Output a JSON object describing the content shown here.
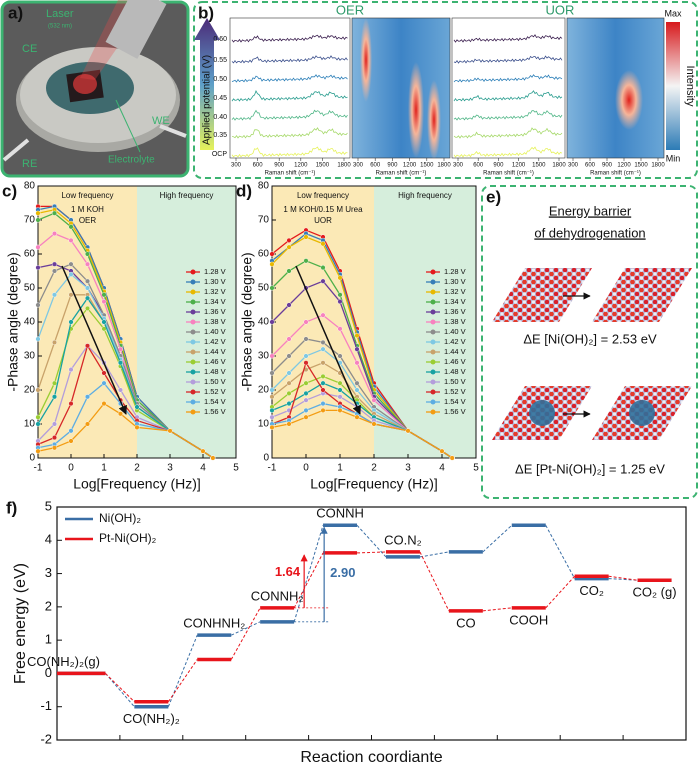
{
  "panels": {
    "a": {
      "label": "a)",
      "laser": "Laser",
      "laser_wavelength": "(532 nm)",
      "ce": "CE",
      "we": "WE",
      "re": "RE",
      "electrolyte": "Electrolyte"
    },
    "b": {
      "label": "b)",
      "oer": "OER",
      "uor": "UOR",
      "potential_axis": "Applied potential (V)",
      "potential_labels": [
        "0.60",
        "0.55",
        "0.50",
        "0.45",
        "0.40",
        "0.35",
        "OCP"
      ],
      "raman_ticks": [
        300,
        600,
        900,
        1200,
        1500,
        1800
      ],
      "raman_axis": "Raman shift (cm⁻¹)",
      "colorbar_max": "Max",
      "colorbar_label": "Intensity",
      "colorbar_min": "Min"
    },
    "e": {
      "label": "e)",
      "title_line1": "Energy barrier",
      "title_line2": "of dehydrogenation",
      "ni_barrier": "ΔE [Ni(OH)₂] = 2.53 eV",
      "pt_barrier": "ΔE [Pt-Ni(OH)₂] = 1.25 eV"
    }
  },
  "chart_data": [
    {
      "type": "line",
      "panel_label": "c)",
      "xlabel": "Log[Frequency (Hz)]",
      "ylabel": "-Phase angle (degree)",
      "xlim": [
        -1,
        5
      ],
      "ylim": [
        0,
        80
      ],
      "xticks": [
        -1,
        0,
        1,
        2,
        3,
        4,
        5
      ],
      "yticks": [
        0,
        10,
        20,
        30,
        40,
        50,
        60,
        70,
        80
      ],
      "regions": [
        {
          "label": "Low frequency",
          "range": [
            -1,
            2
          ],
          "color": "#fbe9b6"
        },
        {
          "label": "High frequency",
          "range": [
            2,
            5
          ],
          "color": "#d6eedc"
        }
      ],
      "annotations": [
        "1 M KOH",
        "OER"
      ],
      "legend": "right",
      "x": [
        -1,
        -0.5,
        0,
        0.5,
        1,
        1.5,
        2,
        3,
        4,
        4.3
      ],
      "series": [
        {
          "name": "1.28 V",
          "color": "#e41a1c",
          "values": [
            74,
            74,
            70,
            62,
            50,
            35,
            18,
            8,
            2,
            0
          ]
        },
        {
          "name": "1.30 V",
          "color": "#377eb8",
          "values": [
            73,
            74,
            70,
            62,
            50,
            35,
            18,
            8,
            2,
            0
          ]
        },
        {
          "name": "1.32 V",
          "color": "#e8b800",
          "values": [
            72,
            73,
            69,
            61,
            49,
            34,
            17,
            8,
            2,
            0
          ]
        },
        {
          "name": "1.34 V",
          "color": "#4daf4a",
          "values": [
            70,
            72,
            68,
            60,
            48,
            33,
            17,
            8,
            2,
            0
          ]
        },
        {
          "name": "1.36 V",
          "color": "#6a3d9a",
          "values": [
            56,
            57,
            55,
            50,
            42,
            30,
            16,
            8,
            2,
            0
          ]
        },
        {
          "name": "1.38 V",
          "color": "#f781bf",
          "values": [
            62,
            66,
            64,
            57,
            46,
            32,
            16,
            8,
            2,
            0
          ]
        },
        {
          "name": "1.40 V",
          "color": "#8c8c8c",
          "values": [
            45,
            55,
            57,
            52,
            42,
            30,
            16,
            8,
            2,
            0
          ]
        },
        {
          "name": "1.42 V",
          "color": "#7ec8e3",
          "values": [
            35,
            48,
            54,
            50,
            41,
            29,
            15,
            8,
            2,
            0
          ]
        },
        {
          "name": "1.44 V",
          "color": "#c8a26a",
          "values": [
            20,
            34,
            48,
            48,
            40,
            28,
            15,
            8,
            2,
            0
          ]
        },
        {
          "name": "1.46 V",
          "color": "#9acd32",
          "values": [
            12,
            22,
            38,
            44,
            38,
            27,
            14,
            8,
            2,
            0
          ]
        },
        {
          "name": "1.48 V",
          "color": "#17a2a2",
          "values": [
            10,
            18,
            40,
            47,
            40,
            28,
            15,
            8,
            2,
            0
          ]
        },
        {
          "name": "1.50 V",
          "color": "#b39ddb",
          "values": [
            5,
            10,
            26,
            33,
            28,
            20,
            12,
            8,
            2,
            0
          ]
        },
        {
          "name": "1.52 V",
          "color": "#d62728",
          "values": [
            4,
            6,
            16,
            33,
            25,
            17,
            11,
            8,
            2,
            0
          ]
        },
        {
          "name": "1.54 V",
          "color": "#5dade2",
          "values": [
            3,
            4,
            8,
            18,
            22,
            16,
            10,
            8,
            2,
            0
          ]
        },
        {
          "name": "1.56 V",
          "color": "#f39c12",
          "values": [
            2,
            3,
            5,
            10,
            16,
            13,
            9,
            8,
            2,
            0
          ]
        }
      ]
    },
    {
      "type": "line",
      "panel_label": "d)",
      "xlabel": "Log[Frequency (Hz)]",
      "ylabel": "-Phase angle (degree)",
      "xlim": [
        -1,
        5
      ],
      "ylim": [
        0,
        80
      ],
      "xticks": [
        -1,
        0,
        1,
        2,
        3,
        4,
        5
      ],
      "yticks": [
        0,
        10,
        20,
        30,
        40,
        50,
        60,
        70,
        80
      ],
      "regions": [
        {
          "label": "Low frequency",
          "range": [
            -1,
            2
          ],
          "color": "#fbe9b6"
        },
        {
          "label": "High frequency",
          "range": [
            2,
            5
          ],
          "color": "#d6eedc"
        }
      ],
      "annotations": [
        "1 M KOH/0.15 M Urea",
        "UOR"
      ],
      "legend": "right",
      "x": [
        -1,
        -0.5,
        0,
        0.5,
        1,
        1.5,
        2,
        3,
        4,
        4.3
      ],
      "series": [
        {
          "name": "1.28 V",
          "color": "#e41a1c",
          "values": [
            60,
            64,
            67,
            65,
            55,
            38,
            22,
            8,
            2,
            0
          ]
        },
        {
          "name": "1.30 V",
          "color": "#377eb8",
          "values": [
            58,
            62,
            66,
            64,
            54,
            37,
            21,
            8,
            2,
            0
          ]
        },
        {
          "name": "1.32 V",
          "color": "#e8b800",
          "values": [
            57,
            62,
            65,
            63,
            53,
            36,
            20,
            8,
            2,
            0
          ]
        },
        {
          "name": "1.34 V",
          "color": "#4daf4a",
          "values": [
            50,
            55,
            58,
            56,
            48,
            33,
            19,
            8,
            2,
            0
          ]
        },
        {
          "name": "1.36 V",
          "color": "#6a3d9a",
          "values": [
            40,
            45,
            50,
            52,
            46,
            32,
            18,
            8,
            2,
            0
          ]
        },
        {
          "name": "1.38 V",
          "color": "#f781bf",
          "values": [
            30,
            35,
            40,
            42,
            38,
            28,
            17,
            8,
            2,
            0
          ]
        },
        {
          "name": "1.40 V",
          "color": "#8c8c8c",
          "values": [
            25,
            30,
            35,
            34,
            30,
            22,
            15,
            8,
            2,
            0
          ]
        },
        {
          "name": "1.42 V",
          "color": "#7ec8e3",
          "values": [
            20,
            25,
            30,
            32,
            28,
            20,
            14,
            8,
            2,
            0
          ]
        },
        {
          "name": "1.44 V",
          "color": "#c8a26a",
          "values": [
            18,
            22,
            26,
            28,
            25,
            18,
            13,
            8,
            2,
            0
          ]
        },
        {
          "name": "1.46 V",
          "color": "#9acd32",
          "values": [
            15,
            19,
            22,
            24,
            22,
            17,
            12,
            8,
            2,
            0
          ]
        },
        {
          "name": "1.48 V",
          "color": "#17a2a2",
          "values": [
            14,
            16,
            19,
            22,
            20,
            16,
            12,
            8,
            2,
            0
          ]
        },
        {
          "name": "1.50 V",
          "color": "#b39ddb",
          "values": [
            12,
            14,
            17,
            19,
            18,
            15,
            11,
            8,
            2,
            0
          ]
        },
        {
          "name": "1.52 V",
          "color": "#d62728",
          "values": [
            10,
            12,
            28,
            20,
            16,
            13,
            10,
            8,
            2,
            0
          ]
        },
        {
          "name": "1.54 V",
          "color": "#5dade2",
          "values": [
            10,
            11,
            14,
            16,
            15,
            13,
            10,
            8,
            2,
            0
          ]
        },
        {
          "name": "1.56 V",
          "color": "#f39c12",
          "values": [
            9,
            10,
            12,
            14,
            14,
            12,
            10,
            8,
            2,
            0
          ]
        }
      ]
    },
    {
      "type": "energy_levels",
      "panel_label": "f)",
      "xlabel": "Reaction coordiante",
      "ylabel": "Free energy (eV)",
      "ylim": [
        -2,
        5
      ],
      "yticks": [
        -2,
        -1,
        0,
        1,
        2,
        3,
        4,
        5
      ],
      "legend": "upper left",
      "categories": [
        "CO(NH₂)₂(g)",
        "CO(NH₂)₂",
        "CONHNH₂",
        "CONNH₂",
        "CONNH",
        "CO.N₂",
        "CO",
        "COOH",
        "CO₂",
        "CO₂ (g)"
      ],
      "series": [
        {
          "name": "Ni(OH)₂",
          "color": "#3a6ea5",
          "values": [
            0,
            -1.0,
            1.15,
            1.55,
            4.45,
            3.5,
            3.65,
            4.45,
            2.85,
            2.8
          ]
        },
        {
          "name": "Pt-Ni(OH)₂",
          "color": "#e8141b",
          "values": [
            0,
            -0.85,
            0.42,
            1.97,
            3.62,
            3.65,
            1.88,
            1.97,
            2.92,
            2.8
          ]
        }
      ],
      "annotations": [
        {
          "text": "1.64",
          "color": "#e8141b"
        },
        {
          "text": "2.90",
          "color": "#3a6ea5"
        }
      ]
    }
  ]
}
